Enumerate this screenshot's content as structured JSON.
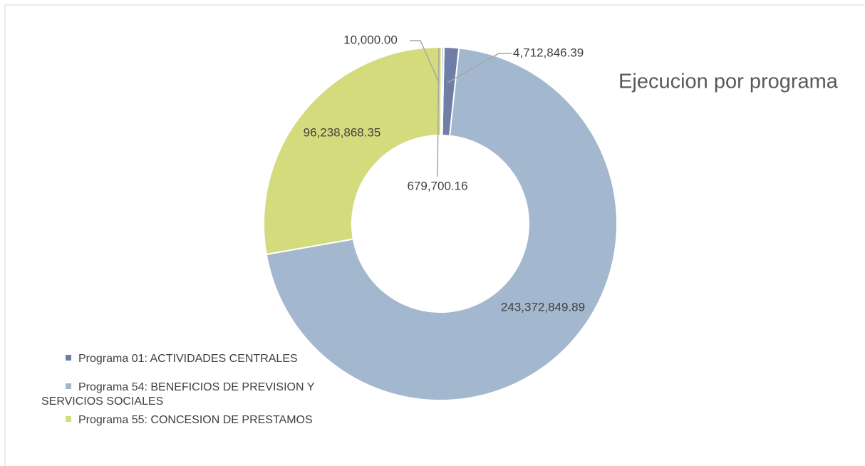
{
  "chart_data": {
    "type": "donut",
    "title": "Ejecucion por programa",
    "categories": [
      "Programa 01: ACTIVIDADES CENTRALES",
      "Programa 54: BENEFICIOS DE PREVISION Y SERVICIOS SOCIALES",
      "Programa 55: CONCESION DE PRESTAMOS",
      null,
      null
    ],
    "values": [
      4712846.39,
      243372849.89,
      96238868.35,
      679700.16,
      10000.0
    ],
    "value_labels": [
      "4,712,846.39",
      "243,372,849.89",
      "96,238,868.35",
      "679,700.16",
      "10,000.00"
    ],
    "colors": [
      "#6f7ea6",
      "#a3b8cf",
      "#d4db7c",
      "#9aa7c2",
      "#c5cfa0"
    ],
    "legend": "bottom-left"
  }
}
